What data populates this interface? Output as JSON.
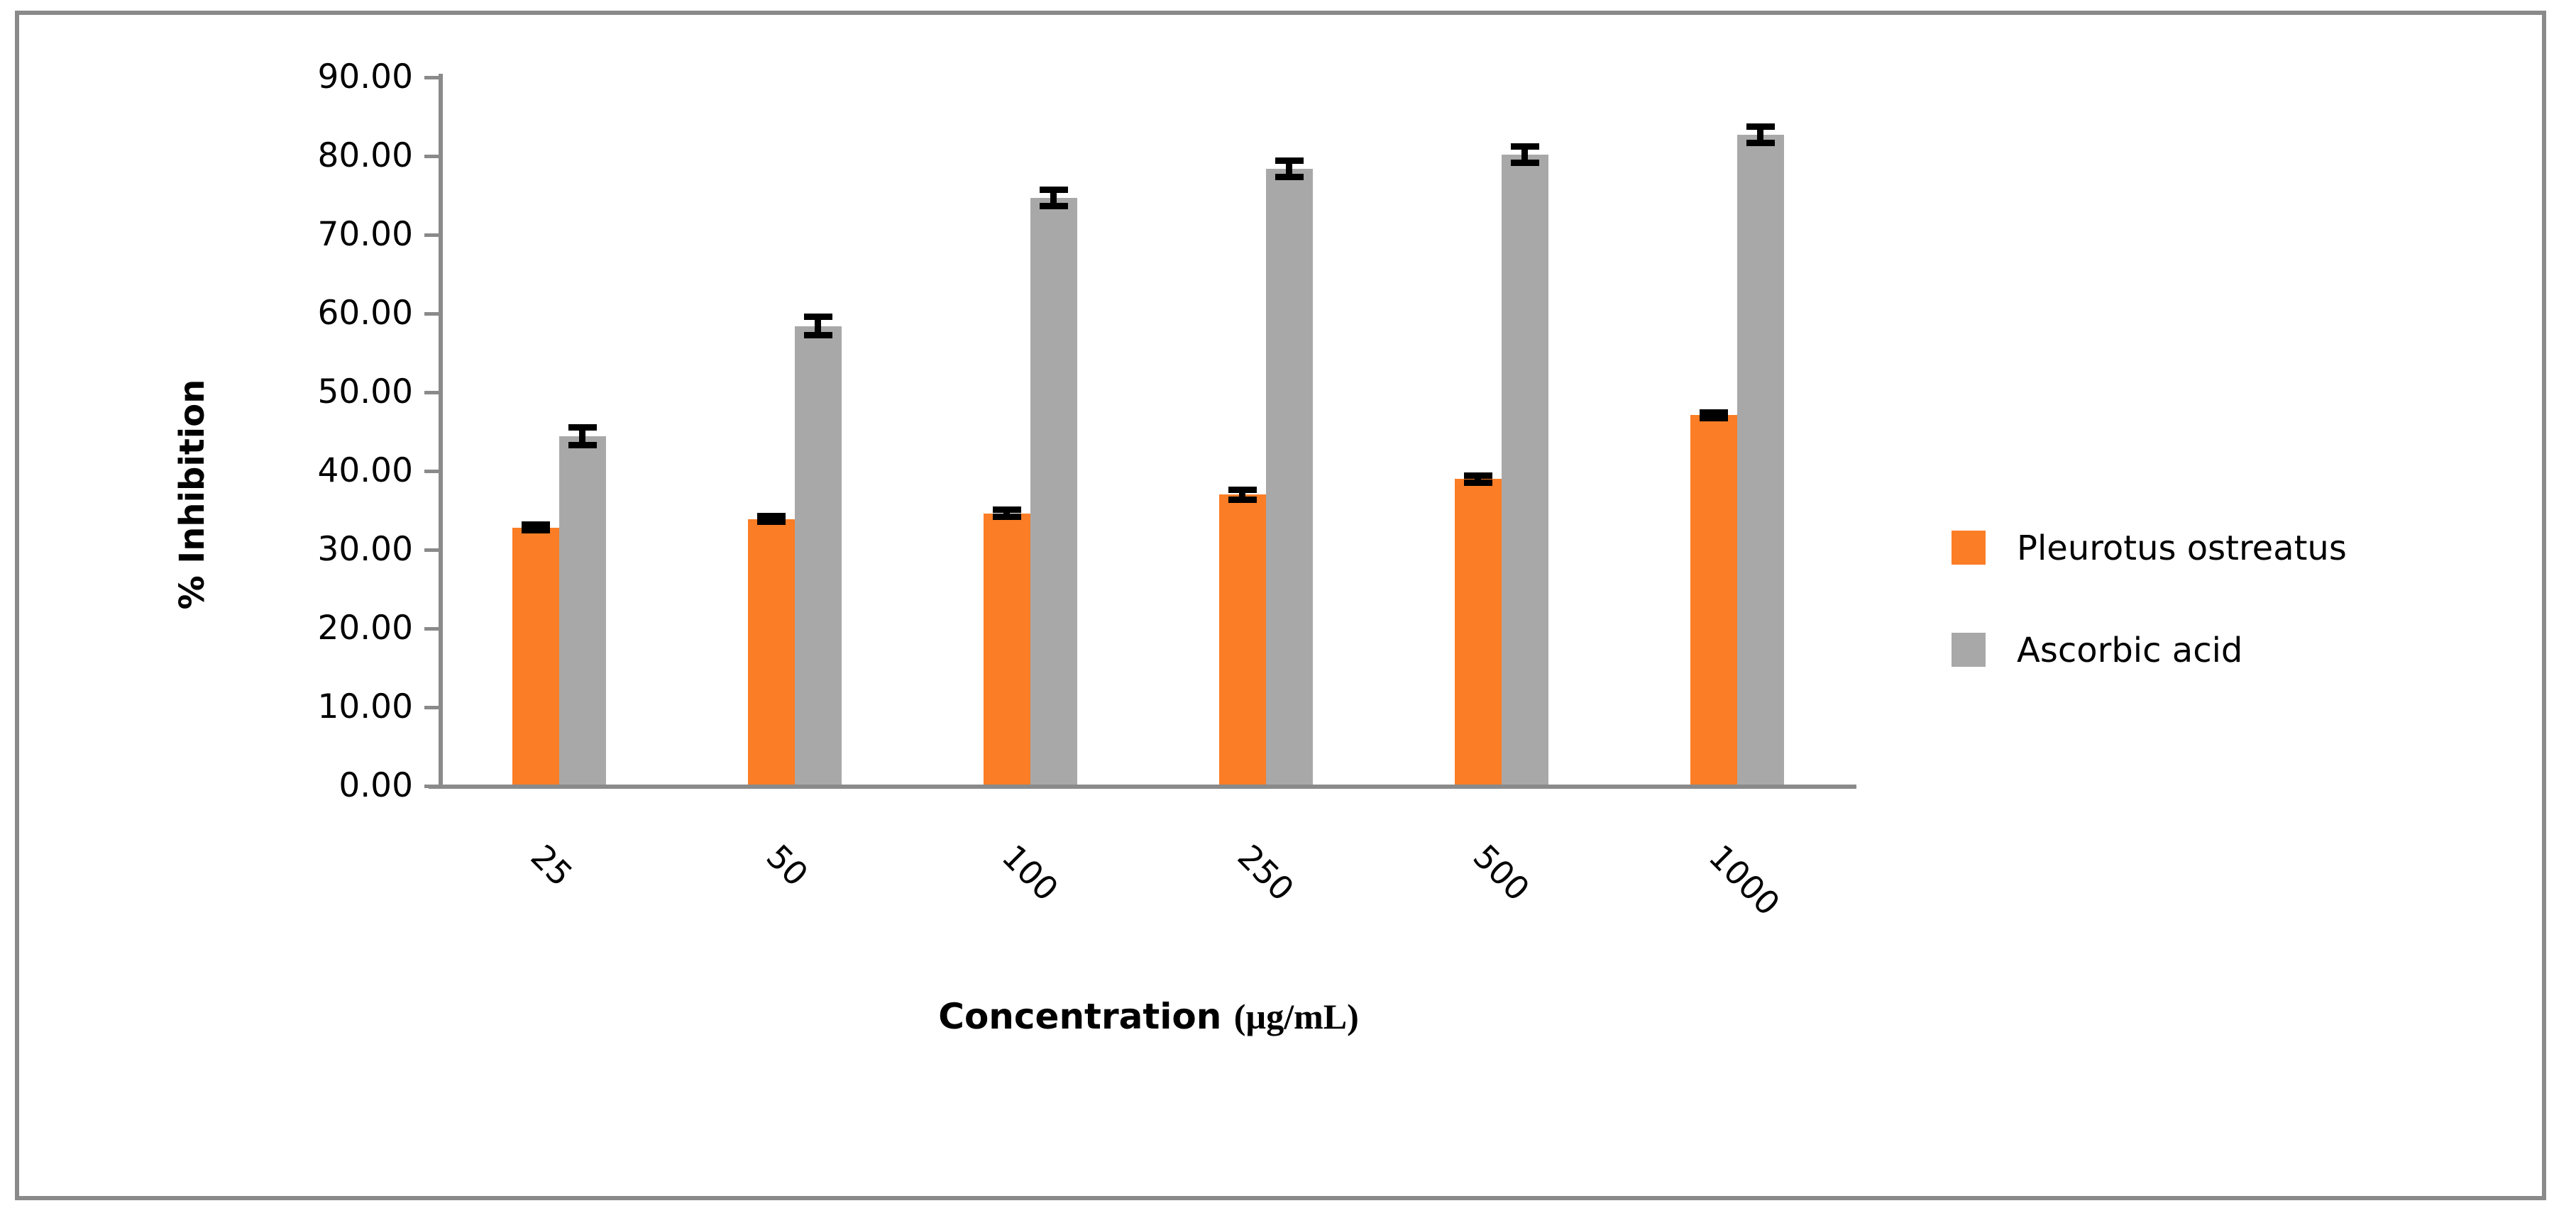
{
  "figure": {
    "background": "#FFFFFF",
    "border_color": "#8A8A8A",
    "axis_color": "#8A8A8A",
    "error_bar_color": "#000000"
  },
  "chart_data": {
    "type": "bar",
    "title": "",
    "xlabel_main": "Concentration ",
    "xlabel_unit": "(µg/mL)",
    "ylabel": "% Inhibition",
    "categories": [
      "25",
      "50",
      "100",
      "250",
      "500",
      "1000"
    ],
    "series": [
      {
        "name": "Pleurotus ostreatus",
        "color": "#FB7D25",
        "values": [
          32.8,
          33.9,
          34.6,
          37.0,
          39.0,
          47.1
        ],
        "errors": [
          0.4,
          0.4,
          0.5,
          0.7,
          0.5,
          0.4
        ]
      },
      {
        "name": "Ascorbic acid",
        "color": "#A8A8A8",
        "values": [
          44.4,
          58.4,
          74.7,
          78.4,
          80.2,
          82.7
        ],
        "errors": [
          1.2,
          1.2,
          1.1,
          1.1,
          1.1,
          1.1
        ]
      }
    ],
    "ylim": [
      0,
      90
    ],
    "ytick_step": 10,
    "ytick_decimals": 2,
    "grid": false,
    "legend_position": "right",
    "error_bars": true
  }
}
